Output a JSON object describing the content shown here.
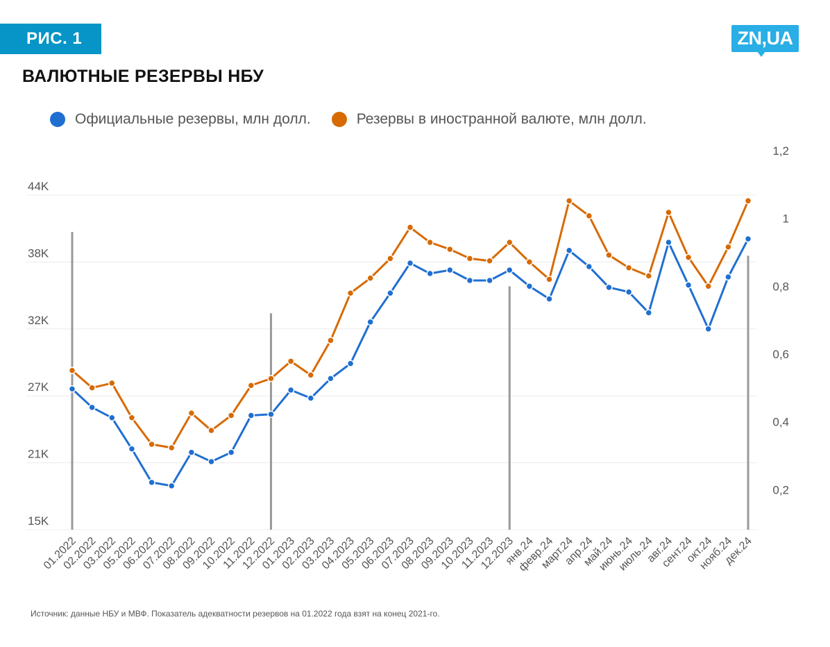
{
  "header": {
    "figure_label": "РИС. 1",
    "logo_text": "ZN,UA",
    "title": "ВАЛЮТНЫЕ РЕЗЕРВЫ НБУ"
  },
  "footer": {
    "source": "Источник: данные НБУ и МВФ. Показатель адекватности резервов на 01.2022 года взят на конец 2021-го."
  },
  "chart_data": {
    "type": "line",
    "title": "ВАЛЮТНЫЕ РЕЗЕРВЫ НБУ",
    "legend_position": "top",
    "grid": true,
    "categories": [
      "01.2022",
      "02.2022",
      "03.2022",
      "05.2022",
      "06.2022",
      "07.2022",
      "08.2022",
      "09.2022",
      "10.2022",
      "11.2022",
      "12.2022",
      "01.2023",
      "02.2023",
      "03.2023",
      "04.2023",
      "05.2023",
      "06.2023",
      "07.2023",
      "08.2023",
      "09.2023",
      "10.2023",
      "11.2023",
      "12.2023",
      "янв.24",
      "февр.24",
      "март.24",
      "апр.24",
      "май.24",
      "июнь.24",
      "июль.24",
      "авг.24",
      "сент.24",
      "окт.24",
      "нояб.24",
      "дек.24"
    ],
    "series": [
      {
        "name": "Официальные резервы, млн долл.",
        "color": "#1f6fd1",
        "axis": "left",
        "values": [
          27200,
          25600,
          24700,
          22000,
          19100,
          18800,
          21700,
          20900,
          21700,
          24900,
          25000,
          27100,
          26400,
          28100,
          29400,
          33000,
          35500,
          38100,
          37200,
          37500,
          36600,
          36600,
          37500,
          36100,
          35000,
          39200,
          37800,
          36000,
          35600,
          33800,
          39900,
          36200,
          32400,
          36900,
          40200
        ]
      },
      {
        "name": "Резервы в иностранной валюте, млн долл.",
        "color": "#d76a03",
        "axis": "left",
        "values": [
          28800,
          27300,
          27700,
          24700,
          22400,
          22100,
          25100,
          23600,
          24900,
          27500,
          28100,
          29600,
          28400,
          31400,
          35500,
          36800,
          38500,
          41200,
          39900,
          39300,
          38500,
          38300,
          39900,
          38200,
          36700,
          43500,
          42200,
          38800,
          37700,
          37000,
          42500,
          38600,
          36100,
          39500,
          43500
        ]
      },
      {
        "name": "Показатель адекватности резервов",
        "color": "#999999",
        "axis": "right",
        "type": "bar",
        "points": {
          "01.2022": 0.96,
          "12.2022": 0.72,
          "12.2023": 0.8,
          "дек.24": 0.89
        }
      }
    ],
    "left_axis": {
      "min": 15000,
      "max": 44000,
      "ticks": [
        15000,
        20800,
        26600,
        32400,
        38200,
        44000
      ],
      "tick_labels": [
        "15K",
        "21K",
        "27K",
        "32K",
        "38K",
        "44K"
      ]
    },
    "right_axis": {
      "min": 0,
      "max": 1.2,
      "ticks": [
        0.2,
        0.4,
        0.6,
        0.8,
        1.0,
        1.2
      ],
      "tick_labels": [
        "0,2",
        "0,4",
        "0,6",
        "0,8",
        "1",
        "1,2"
      ]
    }
  }
}
